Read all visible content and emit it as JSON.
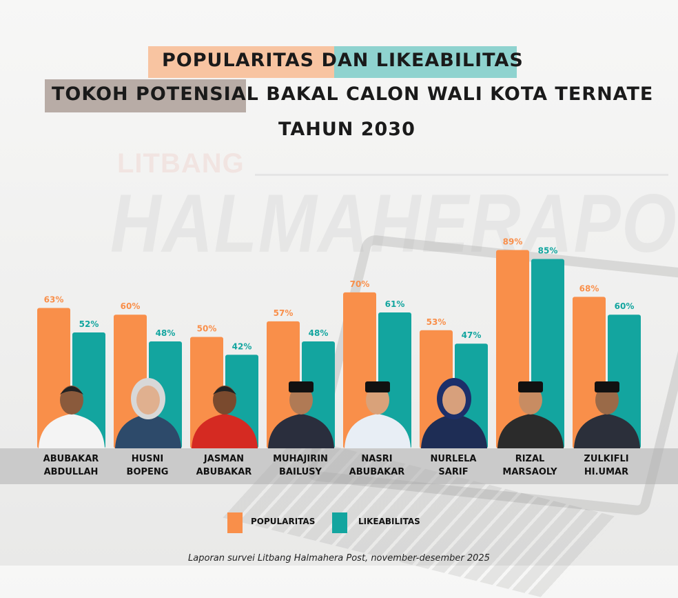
{
  "title": {
    "line1_part1": "POPULARITAS DAN",
    "line1_part2": "LIKEABILITAS",
    "line2_part1": "TOKOH POTENSIAL",
    "line2_part2": "BAKAL CALON WALI KOTA TERNATE",
    "line3": "TAHUN 2030"
  },
  "watermark": {
    "top": "LITBANG",
    "main": "HALMAHERAPOST"
  },
  "colors": {
    "popularitas": "#f98f4a",
    "likeabilitas": "#13a59f",
    "highlight_orange": "#f8c4a1",
    "highlight_teal": "#8fd3cf",
    "highlight_gray": "#b8aca6"
  },
  "chart_data": {
    "type": "bar",
    "title": "Popularitas dan Likeabilitas Tokoh Potensial Bakal Calon Wali Kota Ternate Tahun 2030",
    "categories": [
      [
        "ABUBAKAR",
        "ABDULLAH"
      ],
      [
        "HUSNI",
        "BOPENG"
      ],
      [
        "JASMAN",
        "ABUBAKAR"
      ],
      [
        "MUHAJIRIN",
        "BAILUSY"
      ],
      [
        "NASRI",
        "ABUBAKAR"
      ],
      [
        "NURLELA",
        "SARIF"
      ],
      [
        "RIZAL",
        "MARSAOLY"
      ],
      [
        "ZULKIFLI",
        "HI.UMAR"
      ]
    ],
    "series": [
      {
        "name": "POPULARITAS",
        "values": [
          63,
          60,
          50,
          57,
          70,
          53,
          89,
          68
        ],
        "labels": [
          "63%",
          "60%",
          "50%",
          "57%",
          "70%",
          "53%",
          "89%",
          "68%"
        ]
      },
      {
        "name": "LIKEABILITAS",
        "values": [
          52,
          48,
          42,
          48,
          61,
          47,
          85,
          60
        ],
        "labels": [
          "52%",
          "48%",
          "42%",
          "48%",
          "61%",
          "47%",
          "85%",
          "60%"
        ]
      }
    ],
    "ylim": [
      0,
      100
    ],
    "unit": "%",
    "legend": "bottom-center",
    "grid": false
  },
  "footer": "Laporan survei Litbang Halmahera Post, november-desember 2025"
}
